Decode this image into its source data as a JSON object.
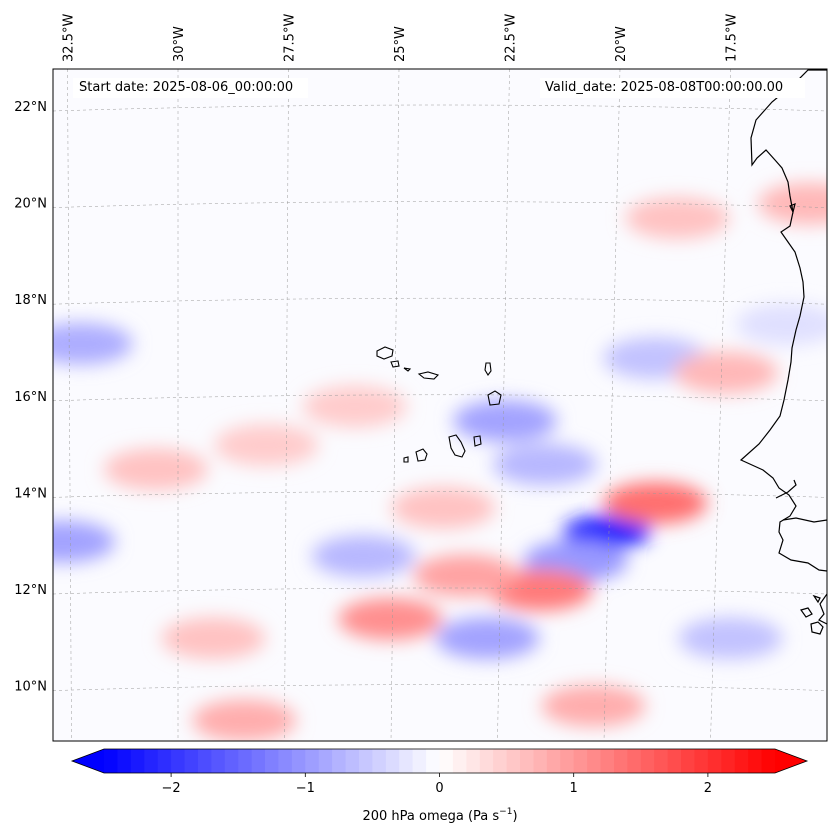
{
  "header": {
    "start_label": "Start date: 2025-08-06_00:00:00",
    "valid_label": "Valid_date: 2025-08-08T00:00:00.00"
  },
  "map": {
    "projection": "lambert-conformal",
    "lon_range": [
      -33.0,
      -15.5
    ],
    "lat_range": [
      8.8,
      22.8
    ],
    "lon_ticks": [
      {
        "value": -32.5,
        "label": "32.5°W"
      },
      {
        "value": -30.0,
        "label": "30°W"
      },
      {
        "value": -27.5,
        "label": "27.5°W"
      },
      {
        "value": -25.0,
        "label": "25°W"
      },
      {
        "value": -22.5,
        "label": "22.5°W"
      },
      {
        "value": -20.0,
        "label": "20°W"
      },
      {
        "value": -17.5,
        "label": "17.5°W"
      }
    ],
    "lat_ticks": [
      {
        "value": 22,
        "label": "22°N"
      },
      {
        "value": 20,
        "label": "20°N"
      },
      {
        "value": 18,
        "label": "18°N"
      },
      {
        "value": 16,
        "label": "16°N"
      },
      {
        "value": 14,
        "label": "14°N"
      },
      {
        "value": 12,
        "label": "12°N"
      },
      {
        "value": 10,
        "label": "10°N"
      }
    ],
    "gridlines": true,
    "features": [
      "cabo-verde-islands",
      "west-africa-coastline"
    ]
  },
  "field": {
    "variable": "200 hPa omega",
    "units": "Pa s⁻¹",
    "min": -2.5,
    "max": 2.5,
    "colormap": [
      "#0000ff",
      "#ffffff",
      "#ff0000"
    ],
    "anomalies": [
      {
        "lon": -20.3,
        "lat": 13.2,
        "value": -2.2
      },
      {
        "lon": -21.0,
        "lat": 12.6,
        "value": -1.0
      },
      {
        "lon": -19.2,
        "lat": 13.8,
        "value": 1.4
      },
      {
        "lon": -21.8,
        "lat": 12.0,
        "value": 1.3
      },
      {
        "lon": -23.5,
        "lat": 12.3,
        "value": 0.9
      },
      {
        "lon": -25.2,
        "lat": 11.4,
        "value": 1.1
      },
      {
        "lon": -23.0,
        "lat": 11.0,
        "value": -0.9
      },
      {
        "lon": -25.8,
        "lat": 12.7,
        "value": -0.7
      },
      {
        "lon": -22.6,
        "lat": 15.5,
        "value": -0.9
      },
      {
        "lon": -21.7,
        "lat": 14.6,
        "value": -0.7
      },
      {
        "lon": -19.2,
        "lat": 16.8,
        "value": -0.6
      },
      {
        "lon": -17.6,
        "lat": 16.5,
        "value": 0.7
      },
      {
        "lon": -18.7,
        "lat": 19.7,
        "value": 0.6
      },
      {
        "lon": -32.2,
        "lat": 17.1,
        "value": -0.8
      },
      {
        "lon": -32.6,
        "lat": 13.0,
        "value": -0.9
      },
      {
        "lon": -30.5,
        "lat": 14.5,
        "value": 0.6
      },
      {
        "lon": -28.0,
        "lat": 15.0,
        "value": 0.5
      },
      {
        "lon": -28.5,
        "lat": 9.3,
        "value": 0.8
      },
      {
        "lon": -20.6,
        "lat": 9.6,
        "value": 0.8
      },
      {
        "lon": -17.5,
        "lat": 11.0,
        "value": -0.6
      },
      {
        "lon": -15.7,
        "lat": 20.0,
        "value": 0.7
      },
      {
        "lon": -16.2,
        "lat": 17.5,
        "value": -0.3
      },
      {
        "lon": -29.2,
        "lat": 11.0,
        "value": 0.6
      },
      {
        "lon": -26.0,
        "lat": 15.8,
        "value": 0.5
      },
      {
        "lon": -24.0,
        "lat": 13.7,
        "value": 0.6
      }
    ]
  },
  "colorbar": {
    "ticks": [
      -2,
      -1,
      0,
      1,
      2
    ],
    "tick_labels": [
      "−2",
      "−1",
      "0",
      "1",
      "2"
    ],
    "label_main": "200 hPa omega (Pa s",
    "label_sup": "−1",
    "label_end": ")",
    "extend": "both"
  }
}
